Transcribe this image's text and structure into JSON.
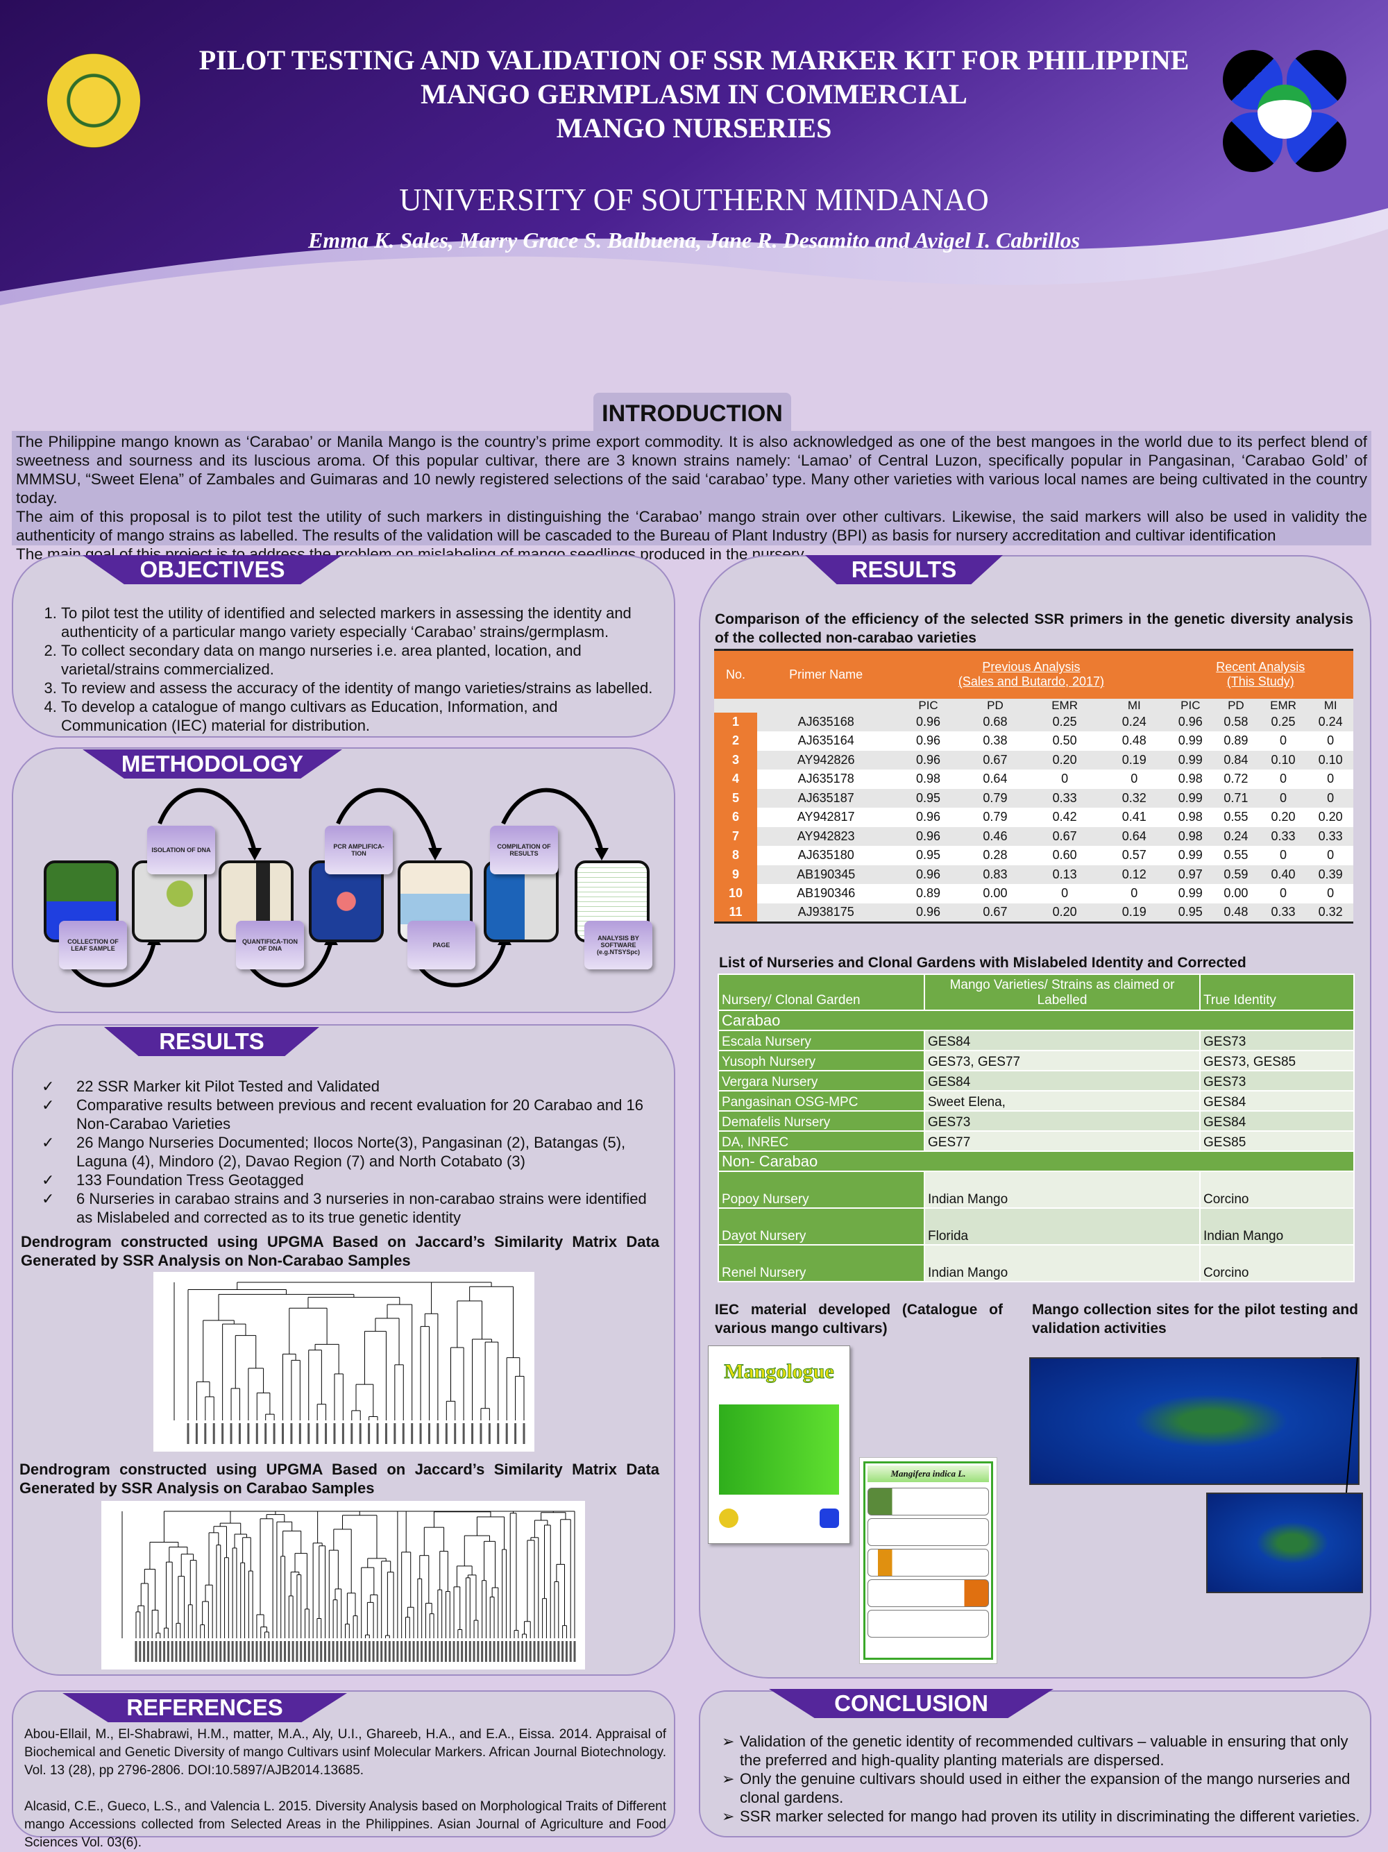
{
  "header": {
    "title_lines": [
      "PILOT TESTING AND VALIDATION OF SSR MARKER  KIT FOR PHILIPPINE",
      "MANGO GERMPLASM IN COMMERCIAL",
      "MANGO NURSERIES"
    ],
    "university": "UNIVERSITY OF SOUTHERN MINDANAO",
    "authors": "Emma K. Sales, Marry Grace S. Balbuena, Jane R. Desamito and Avigel I. Cabrillos",
    "left_logo": "UNIVERSITY OF SOUTHERN MINDANAO KABACAN, COTABATO seal",
    "right_logo": "DOST-PCAARRD logo"
  },
  "introduction": {
    "heading": "INTRODUCTION",
    "paragraphs": [
      " The Philippine mango known as ‘Carabao’ or Manila Mango is the country’s prime export commodity. It is also acknowledged as one of the best mangoes in the world due to its perfect blend of sweetness and sourness and its luscious aroma. Of this popular cultivar, there are 3 known strains namely: ‘Lamao’ of Central Luzon, specifically popular in Pangasinan, ‘Carabao Gold’ of MMMSU, “Sweet Elena” of Zambales and Guimaras and 10 newly registered selections of the said ‘carabao’ type. Many other varieties with various local names are being cultivated in the country today.",
      "The aim of this proposal is to pilot test the utility of such markers in distinguishing the ‘Carabao’ mango strain over other cultivars. Likewise, the said markers will also be used in validity the authenticity of mango strains as labelled. The results of the validation will be cascaded to the Bureau of Plant Industry (BPI) as basis for nursery accreditation and cultivar identification",
      "The main goal of this project is to address the problem on mislabeling of mango seedlings produced in the nursery."
    ]
  },
  "objectives": {
    "heading": "OBJECTIVES",
    "items": [
      "To pilot test the utility of identified and selected markers in assessing the identity and authenticity of a particular mango variety especially ‘Carabao’ strains/germplasm.",
      "To collect secondary data on mango nurseries i.e. area planted, location, and varietal/strains commercialized.",
      "To review and assess the accuracy of the identity of mango varieties/strains as labelled.",
      "To develop a catalogue of mango cultivars as Education, Information, and Communication (IEC) material for distribution."
    ]
  },
  "methodology": {
    "heading": "METHODOLOGY",
    "steps": [
      "COLLECTION OF LEAF SAMPLE",
      "ISOLATION OF DNA",
      "QUANTIFICA-TION OF DNA",
      "PCR AMPLIFICA-TION",
      "PAGE",
      "COMPILATION  OF RESULTS",
      "ANALYSIS BY SOFTWARE (e.g.NTSYSpc)"
    ]
  },
  "results_left": {
    "heading": "RESULTS",
    "check_icon": "✓",
    "items": [
      "22 SSR Marker kit Pilot Tested and Validated",
      "Comparative results  between previous and recent evaluation for 20 Carabao and 16 Non-Carabao Varieties",
      "26 Mango Nurseries Documented; Ilocos Norte(3), Pangasinan (2), Batangas (5), Laguna (4), Mindoro (2), Davao Region (7) and North Cotabato (3)",
      "133 Foundation Tress Geotagged",
      "6 Nurseries in carabao strains and 3 nurseries in non-carabao strains were identified as Mislabeled and corrected as to its true genetic identity"
    ],
    "dendro1_title": "Dendrogram constructed using UPGMA Based on Jaccard’s Similarity Matrix Data Generated by SSR Analysis on Non-Carabao Samples",
    "dendro2_title": "Dendrogram constructed using UPGMA Based on Jaccard’s Similarity Matrix Data Generated by SSR Analysis on Carabao Samples"
  },
  "results_right": {
    "heading": "RESULTS",
    "table1_title": "Comparison of the efficiency of the selected SSR primers in the genetic diversity analysis of the collected non-carabao varieties",
    "table1": {
      "col_no": "No.",
      "col_primer": "Primer Name",
      "prev_line1": "Previous Analysis",
      "prev_line2": "(Sales and Butardo, 2017)",
      "recent_line1": "Recent Analysis",
      "recent_line2": "(This Study)",
      "subcols": [
        "PIC",
        "PD",
        "EMR",
        "MI",
        "PIC",
        "PD",
        "EMR",
        "MI"
      ],
      "rows": [
        [
          "1",
          "AJ635168",
          "0.96",
          "0.68",
          "0.25",
          "0.24",
          "0.96",
          "0.58",
          "0.25",
          "0.24"
        ],
        [
          "2",
          "AJ635164",
          "0.96",
          "0.38",
          "0.50",
          "0.48",
          "0.99",
          "0.89",
          "0",
          "0"
        ],
        [
          "3",
          "AY942826",
          "0.96",
          "0.67",
          "0.20",
          "0.19",
          "0.99",
          "0.84",
          "0.10",
          "0.10"
        ],
        [
          "4",
          "AJ635178",
          "0.98",
          "0.64",
          "0",
          "0",
          "0.98",
          "0.72",
          "0",
          "0"
        ],
        [
          "5",
          "AJ635187",
          "0.95",
          "0.79",
          "0.33",
          "0.32",
          "0.99",
          "0.71",
          "0",
          "0"
        ],
        [
          "6",
          "AY942817",
          "0.96",
          "0.79",
          "0.42",
          "0.41",
          "0.98",
          "0.55",
          "0.20",
          "0.20"
        ],
        [
          "7",
          "AY942823",
          "0.96",
          "0.46",
          "0.67",
          "0.64",
          "0.98",
          "0.24",
          "0.33",
          "0.33"
        ],
        [
          "8",
          "AJ635180",
          "0.95",
          "0.28",
          "0.60",
          "0.57",
          "0.99",
          "0.55",
          "0",
          "0"
        ],
        [
          "9",
          "AB190345",
          "0.96",
          "0.83",
          "0.13",
          "0.12",
          "0.97",
          "0.59",
          "0.40",
          "0.39"
        ],
        [
          "10",
          "AB190346",
          "0.89",
          "0.00",
          "0",
          "0",
          "0.99",
          "0.00",
          "0",
          "0"
        ],
        [
          "11",
          "AJ938175",
          "0.96",
          "0.67",
          "0.20",
          "0.19",
          "0.95",
          "0.48",
          "0.33",
          "0.32"
        ]
      ]
    },
    "table2_title": "List of Nurseries and Clonal Gardens with Mislabeled Identity and Corrected",
    "table2": {
      "headers": [
        "Nursery/ Clonal Garden",
        "Mango Varieties/ Strains as claimed or Labelled",
        "True Identity"
      ],
      "groups": [
        {
          "name": "Carabao",
          "rows": [
            [
              "Escala Nursery",
              "GES84",
              "GES73"
            ],
            [
              "Yusoph Nursery",
              "GES73, GES77",
              "GES73, GES85"
            ],
            [
              "Vergara Nursery",
              "GES84",
              "GES73"
            ],
            [
              "Pangasinan OSG-MPC",
              "Sweet Elena,",
              "GES84"
            ],
            [
              "Demafelis Nursery",
              "GES73",
              "GES84"
            ],
            [
              "DA, INREC",
              "GES77",
              "GES85"
            ]
          ]
        },
        {
          "name": "Non- Carabao",
          "rows": [
            [
              "Popoy  Nursery",
              "Indian Mango",
              "Corcino"
            ],
            [
              "Dayot Nursery",
              "Florida",
              "Indian Mango"
            ],
            [
              "Renel Nursery",
              "Indian Mango",
              "Corcino"
            ]
          ]
        }
      ]
    },
    "iec_title": "IEC material developed (Catalogue of various mango cultivars)",
    "iec_cover_title": "Mangologue",
    "iec_sheet_title": "Mangifera indica L.",
    "map_title": "Mango collection sites for the pilot testing and validation activities"
  },
  "references": {
    "heading": "REFERENCES",
    "items": [
      "Abou-Ellail, M., El-Shabrawi, H.M., matter, M.A., Aly, U.I., Ghareeb, H.A., and E.A., Eissa. 2014. Appraisal of Biochemical and Genetic Diversity of mango Cultivars usinf Molecular Markers. African Journal Biotechnology. Vol. 13 (28), pp 2796-2806. DOI:10.5897/AJB2014.13685.",
      "Alcasid, C.E., Gueco, L.S., and Valencia L. 2015. Diversity Analysis based on Morphological Traits of Different mango Accessions collected from Selected Areas in the Philippines. Asian Journal of Agriculture and Food Sciences Vol. 03(6)."
    ]
  },
  "conclusion": {
    "heading": "CONCLUSION",
    "arrow_icon": "➢",
    "items": [
      "Validation of the genetic identity of recommended cultivars – valuable in ensuring that only the preferred and high-quality planting materials are dispersed.",
      "Only the genuine cultivars should used in either the expansion of the mango nurseries and clonal gardens.",
      "SSR marker selected for mango had proven its utility in discriminating the different varieties."
    ]
  },
  "colors": {
    "header_purple": "#3d1878",
    "tab_purple": "#55269b",
    "orange": "#ec7b31",
    "green": "#6fab46",
    "panel": "#d6cfe0",
    "background": "#dccde8"
  }
}
